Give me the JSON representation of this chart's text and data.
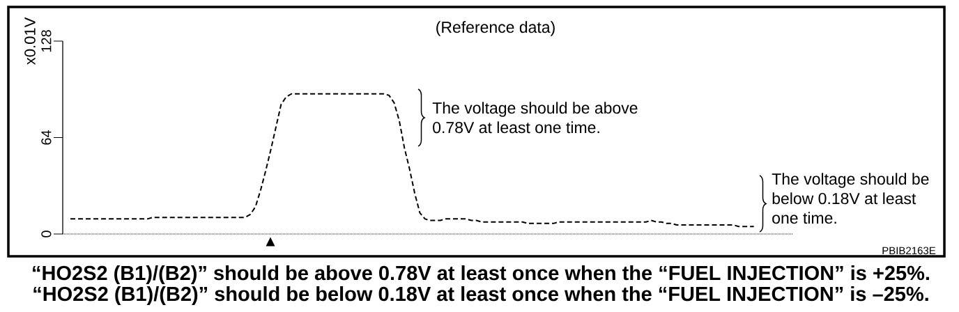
{
  "chart_data": {
    "type": "line",
    "title": "(Reference data)",
    "ylabel": "x0.01V",
    "categories": [
      null,
      null,
      null,
      null,
      null,
      null,
      null,
      null,
      null,
      null,
      null,
      null,
      null,
      null,
      null,
      null,
      null,
      null,
      null,
      null,
      null,
      null,
      null,
      null,
      null,
      null,
      null,
      null,
      null,
      null,
      null,
      null,
      null,
      null,
      null,
      null,
      null,
      null,
      null,
      null,
      null,
      null,
      null,
      null,
      null,
      null,
      null,
      null,
      null,
      null,
      null,
      null,
      null,
      null,
      null,
      null,
      null,
      null,
      null,
      null,
      null,
      null,
      null,
      null,
      null,
      null,
      null,
      null,
      null,
      null,
      null,
      null,
      null,
      null,
      null,
      null,
      null,
      null,
      null,
      null,
      null,
      null,
      null,
      null,
      null,
      null,
      null,
      null,
      null,
      null,
      null,
      null,
      null,
      null,
      null,
      null,
      null,
      null,
      null,
      null,
      null,
      null,
      null,
      null,
      null,
      null,
      null,
      null,
      null,
      null,
      null,
      null,
      null,
      null,
      null,
      null,
      null,
      null,
      null,
      null,
      null,
      null,
      null,
      null,
      null,
      null,
      null,
      null,
      null,
      null,
      null,
      null,
      null,
      null,
      null,
      null,
      null,
      null,
      null,
      null,
      null,
      null
    ],
    "values": [
      null,
      10,
      10,
      10,
      10,
      10,
      10,
      10,
      10,
      10,
      10,
      10,
      10,
      10,
      10,
      10,
      10,
      11,
      11,
      11,
      11,
      11,
      11,
      11,
      11,
      11,
      11,
      11,
      11,
      11,
      11,
      11,
      11,
      11,
      11,
      11,
      13,
      18,
      29,
      42,
      56,
      71,
      86,
      91,
      93,
      93,
      93,
      93,
      93,
      93,
      93,
      93,
      93,
      93,
      93,
      93,
      93,
      93,
      93,
      93,
      93,
      93,
      93,
      92,
      87,
      75,
      57,
      43,
      27,
      14,
      10,
      9,
      9,
      9,
      10,
      10,
      10,
      10,
      10,
      9,
      9,
      8,
      8,
      8,
      8,
      8,
      8,
      8,
      8,
      8,
      7,
      7,
      7,
      7,
      7,
      7,
      8,
      8,
      8,
      8,
      8,
      8,
      8,
      8,
      8,
      8,
      8,
      8,
      8,
      8,
      8,
      8,
      8,
      8,
      9,
      8,
      8,
      7,
      7,
      6,
      6,
      6,
      6,
      6,
      6,
      6,
      6,
      6,
      6,
      6,
      6,
      5,
      5,
      5,
      5,
      null,
      null,
      null,
      null,
      null,
      null,
      null
    ],
    "color": "#000000",
    "line_style": "dashed",
    "marker": "none",
    "ylim": [
      0,
      128
    ],
    "yticks": [
      0,
      64,
      128
    ],
    "tick_labels": "y",
    "annotations": [
      "The voltage should be above 0.78V at least one time.",
      "The voltage should be below 0.18V at least one time.",
      "▲",
      "PBIB2163E",
      "“HO2S2 (B1)/(B2)” should be above 0.78V at least once when the “FUEL INJECTION” is +25%.",
      "“HO2S2 (B1)/(B2)” should be below 0.18V at least once when the “FUEL INJECTION” is –25%."
    ]
  }
}
